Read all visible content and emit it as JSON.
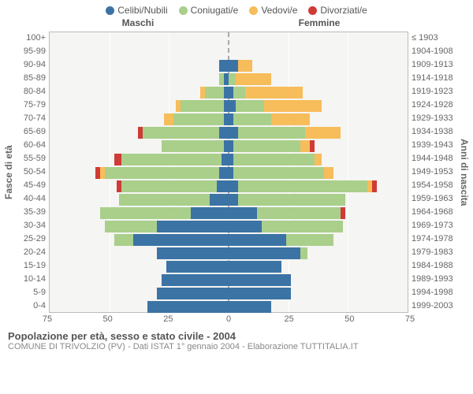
{
  "legend": [
    {
      "label": "Celibi/Nubili",
      "color": "#3b73a5"
    },
    {
      "label": "Coniugati/e",
      "color": "#a9cf8b"
    },
    {
      "label": "Vedovi/e",
      "color": "#f7bd5a"
    },
    {
      "label": "Divorziati/e",
      "color": "#cf3b36"
    }
  ],
  "side_titles": {
    "male": "Maschi",
    "female": "Femmine"
  },
  "y_axis_left_label": "Fasce di età",
  "y_axis_right_label": "Anni di nascita",
  "x_axis": {
    "max": 75,
    "ticks": [
      75,
      50,
      25,
      0,
      25,
      50,
      75
    ]
  },
  "footer_title": "Popolazione per età, sesso e stato civile - 2004",
  "footer_sub": "COMUNE DI TRIVOLZIO (PV) - Dati ISTAT 1° gennaio 2004 - Elaborazione TUTTITALIA.IT",
  "age_labels": [
    "100+",
    "95-99",
    "90-94",
    "85-89",
    "80-84",
    "75-79",
    "70-74",
    "65-69",
    "60-64",
    "55-59",
    "50-54",
    "45-49",
    "40-44",
    "35-39",
    "30-34",
    "25-29",
    "20-24",
    "15-19",
    "10-14",
    "5-9",
    "0-4"
  ],
  "birth_labels": [
    "≤ 1903",
    "1904-1908",
    "1909-1913",
    "1914-1918",
    "1919-1923",
    "1924-1928",
    "1929-1933",
    "1934-1938",
    "1939-1943",
    "1944-1948",
    "1949-1953",
    "1954-1958",
    "1959-1963",
    "1964-1968",
    "1969-1973",
    "1974-1978",
    "1979-1983",
    "1984-1988",
    "1989-1993",
    "1994-1998",
    "1999-2003"
  ],
  "colors": {
    "single": "#3b73a5",
    "married": "#a9cf8b",
    "widowed": "#f7bd5a",
    "divorced": "#cf3b36",
    "plot_bg": "#f5f5f3",
    "grid": "#ffffff"
  },
  "rows": [
    {
      "m": {
        "s": 0,
        "m": 0,
        "w": 0,
        "d": 0
      },
      "f": {
        "s": 0,
        "m": 0,
        "w": 0,
        "d": 0
      }
    },
    {
      "m": {
        "s": 0,
        "m": 0,
        "w": 0,
        "d": 0
      },
      "f": {
        "s": 0,
        "m": 0,
        "w": 0,
        "d": 0
      }
    },
    {
      "m": {
        "s": 4,
        "m": 0,
        "w": 0,
        "d": 0
      },
      "f": {
        "s": 4,
        "m": 0,
        "w": 6,
        "d": 0
      }
    },
    {
      "m": {
        "s": 2,
        "m": 2,
        "w": 0,
        "d": 0
      },
      "f": {
        "s": 0,
        "m": 3,
        "w": 15,
        "d": 0
      }
    },
    {
      "m": {
        "s": 2,
        "m": 8,
        "w": 2,
        "d": 0
      },
      "f": {
        "s": 2,
        "m": 5,
        "w": 24,
        "d": 0
      }
    },
    {
      "m": {
        "s": 2,
        "m": 18,
        "w": 2,
        "d": 0
      },
      "f": {
        "s": 3,
        "m": 12,
        "w": 24,
        "d": 0
      }
    },
    {
      "m": {
        "s": 2,
        "m": 21,
        "w": 4,
        "d": 0
      },
      "f": {
        "s": 2,
        "m": 16,
        "w": 16,
        "d": 0
      }
    },
    {
      "m": {
        "s": 4,
        "m": 32,
        "w": 0,
        "d": 2
      },
      "f": {
        "s": 4,
        "m": 28,
        "w": 15,
        "d": 0
      }
    },
    {
      "m": {
        "s": 2,
        "m": 26,
        "w": 0,
        "d": 0
      },
      "f": {
        "s": 2,
        "m": 28,
        "w": 4,
        "d": 2
      }
    },
    {
      "m": {
        "s": 3,
        "m": 42,
        "w": 0,
        "d": 3
      },
      "f": {
        "s": 2,
        "m": 34,
        "w": 3,
        "d": 0
      }
    },
    {
      "m": {
        "s": 4,
        "m": 48,
        "w": 2,
        "d": 2
      },
      "f": {
        "s": 2,
        "m": 38,
        "w": 4,
        "d": 0
      }
    },
    {
      "m": {
        "s": 5,
        "m": 40,
        "w": 0,
        "d": 2
      },
      "f": {
        "s": 4,
        "m": 54,
        "w": 2,
        "d": 2
      }
    },
    {
      "m": {
        "s": 8,
        "m": 38,
        "w": 0,
        "d": 0
      },
      "f": {
        "s": 4,
        "m": 45,
        "w": 0,
        "d": 0
      }
    },
    {
      "m": {
        "s": 16,
        "m": 38,
        "w": 0,
        "d": 0
      },
      "f": {
        "s": 12,
        "m": 35,
        "w": 0,
        "d": 2
      }
    },
    {
      "m": {
        "s": 30,
        "m": 22,
        "w": 0,
        "d": 0
      },
      "f": {
        "s": 14,
        "m": 34,
        "w": 0,
        "d": 0
      }
    },
    {
      "m": {
        "s": 40,
        "m": 8,
        "w": 0,
        "d": 0
      },
      "f": {
        "s": 24,
        "m": 20,
        "w": 0,
        "d": 0
      }
    },
    {
      "m": {
        "s": 30,
        "m": 0,
        "w": 0,
        "d": 0
      },
      "f": {
        "s": 30,
        "m": 3,
        "w": 0,
        "d": 0
      }
    },
    {
      "m": {
        "s": 26,
        "m": 0,
        "w": 0,
        "d": 0
      },
      "f": {
        "s": 22,
        "m": 0,
        "w": 0,
        "d": 0
      }
    },
    {
      "m": {
        "s": 28,
        "m": 0,
        "w": 0,
        "d": 0
      },
      "f": {
        "s": 26,
        "m": 0,
        "w": 0,
        "d": 0
      }
    },
    {
      "m": {
        "s": 30,
        "m": 0,
        "w": 0,
        "d": 0
      },
      "f": {
        "s": 26,
        "m": 0,
        "w": 0,
        "d": 0
      }
    },
    {
      "m": {
        "s": 34,
        "m": 0,
        "w": 0,
        "d": 0
      },
      "f": {
        "s": 18,
        "m": 0,
        "w": 0,
        "d": 0
      }
    }
  ]
}
